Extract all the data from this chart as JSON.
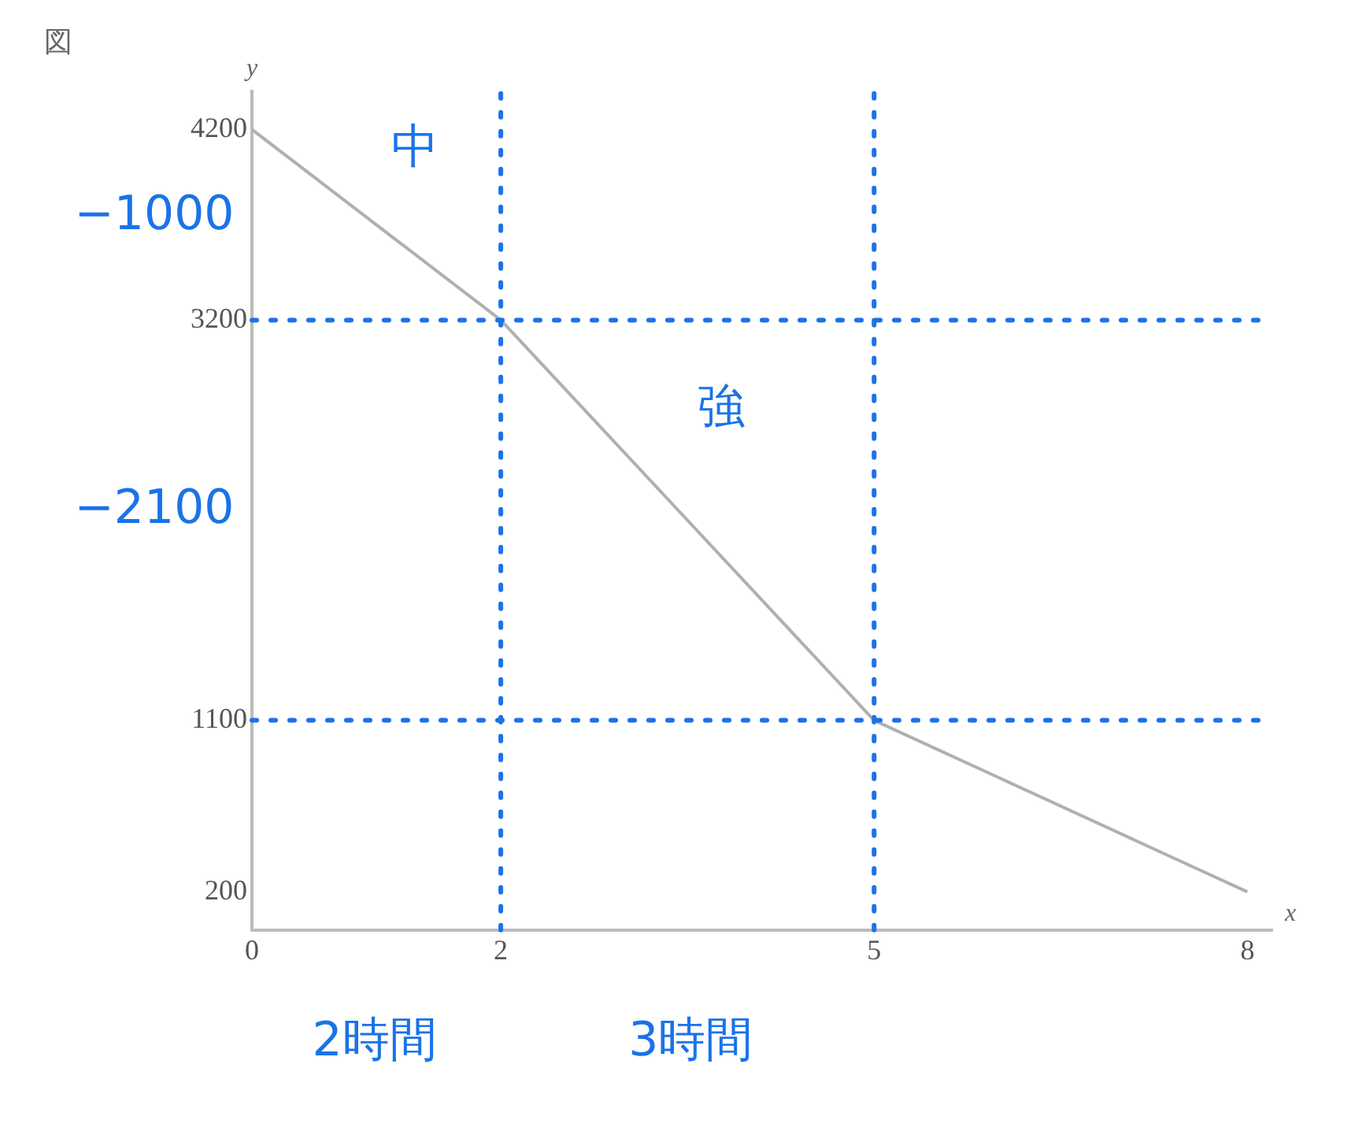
{
  "chart_data": {
    "type": "line",
    "title": "図",
    "xlabel": "x",
    "ylabel": "y",
    "x": [
      0,
      2,
      5,
      8
    ],
    "values": [
      4200,
      3200,
      1100,
      200
    ],
    "color": "#b0b0b0",
    "xlim": [
      0,
      8.2
    ],
    "ylim": [
      0,
      4400
    ],
    "xticks": [
      0,
      2,
      5,
      8
    ],
    "yticks": [
      200,
      1100,
      3200,
      4200
    ],
    "grid": false,
    "ref_lines": [
      {
        "axis": "y",
        "value": 3200,
        "label": null,
        "color": "#1a73e8",
        "line_style": "dotted"
      },
      {
        "axis": "y",
        "value": 1100,
        "label": null,
        "color": "#1a73e8",
        "line_style": "dotted"
      },
      {
        "axis": "x",
        "value": 2,
        "label": null,
        "color": "#1a73e8",
        "line_style": "dotted"
      },
      {
        "axis": "x",
        "value": 5,
        "label": null,
        "color": "#1a73e8",
        "line_style": "dotted"
      }
    ],
    "annotations": [
      "中",
      "強",
      "−1000",
      "−2100",
      "2時間",
      "3時間"
    ]
  }
}
